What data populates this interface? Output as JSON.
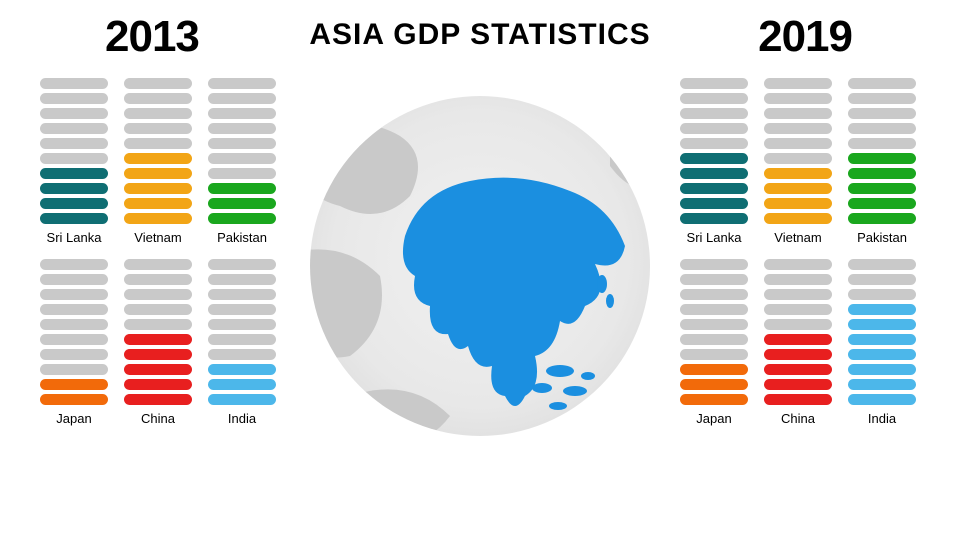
{
  "title": "ASIA GDP STATISTICS",
  "title_fontsize": 30,
  "background_color": "#ffffff",
  "pill_empty_color": "#c9c9c9",
  "pill_total": 10,
  "pill_height": 11,
  "pill_gap": 4,
  "pill_radius": 6,
  "globe": {
    "bg_colors": [
      "#f1f1f1",
      "#e8e8e8",
      "#d4d4d4"
    ],
    "land_color": "#c9c9c9",
    "asia_color": "#1b8fe0"
  },
  "years": {
    "left": {
      "label": "2013",
      "countries": [
        {
          "name": "Sri Lanka",
          "filled": 4,
          "color": "#0f6e73"
        },
        {
          "name": "Vietnam",
          "filled": 5,
          "color": "#f2a516"
        },
        {
          "name": "Pakistan",
          "filled": 3,
          "color": "#1aa71e"
        },
        {
          "name": "Japan",
          "filled": 2,
          "color": "#f26a0a"
        },
        {
          "name": "China",
          "filled": 5,
          "color": "#e81f1f"
        },
        {
          "name": "India",
          "filled": 3,
          "color": "#4cb7ea"
        }
      ]
    },
    "right": {
      "label": "2019",
      "countries": [
        {
          "name": "Sri Lanka",
          "filled": 5,
          "color": "#0f6e73"
        },
        {
          "name": "Vietnam",
          "filled": 4,
          "color": "#f2a516"
        },
        {
          "name": "Pakistan",
          "filled": 5,
          "color": "#1aa71e"
        },
        {
          "name": "Japan",
          "filled": 3,
          "color": "#f26a0a"
        },
        {
          "name": "China",
          "filled": 5,
          "color": "#e81f1f"
        },
        {
          "name": "India",
          "filled": 7,
          "color": "#4cb7ea"
        }
      ]
    }
  }
}
